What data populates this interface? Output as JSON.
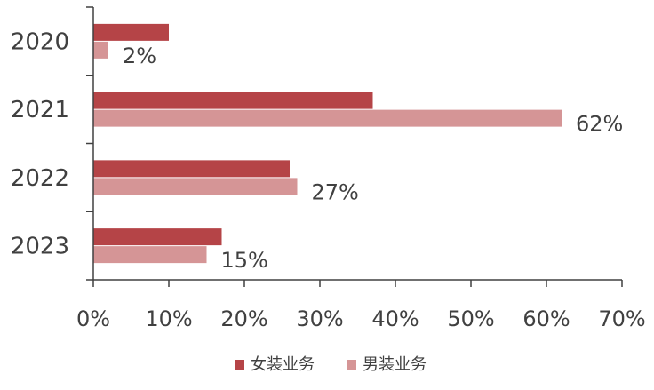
{
  "chart_data": {
    "type": "bar",
    "orientation": "horizontal",
    "categories": [
      "2020",
      "2021",
      "2022",
      "2023"
    ],
    "series": [
      {
        "name": "女装业务",
        "values": [
          10,
          37,
          26,
          17
        ],
        "color": "#b54447"
      },
      {
        "name": "男装业务",
        "values": [
          2,
          62,
          27,
          15
        ],
        "color": "#d59596"
      }
    ],
    "data_labels": {
      "男装业务": [
        "2%",
        "62%",
        "27%",
        "15%"
      ]
    },
    "x_ticks": [
      "0%",
      "10%",
      "20%",
      "30%",
      "40%",
      "50%",
      "60%",
      "70%"
    ],
    "xlim": [
      0,
      70
    ],
    "grid": false,
    "legend_position": "bottom-center",
    "title": "",
    "xlabel": "",
    "ylabel": ""
  }
}
